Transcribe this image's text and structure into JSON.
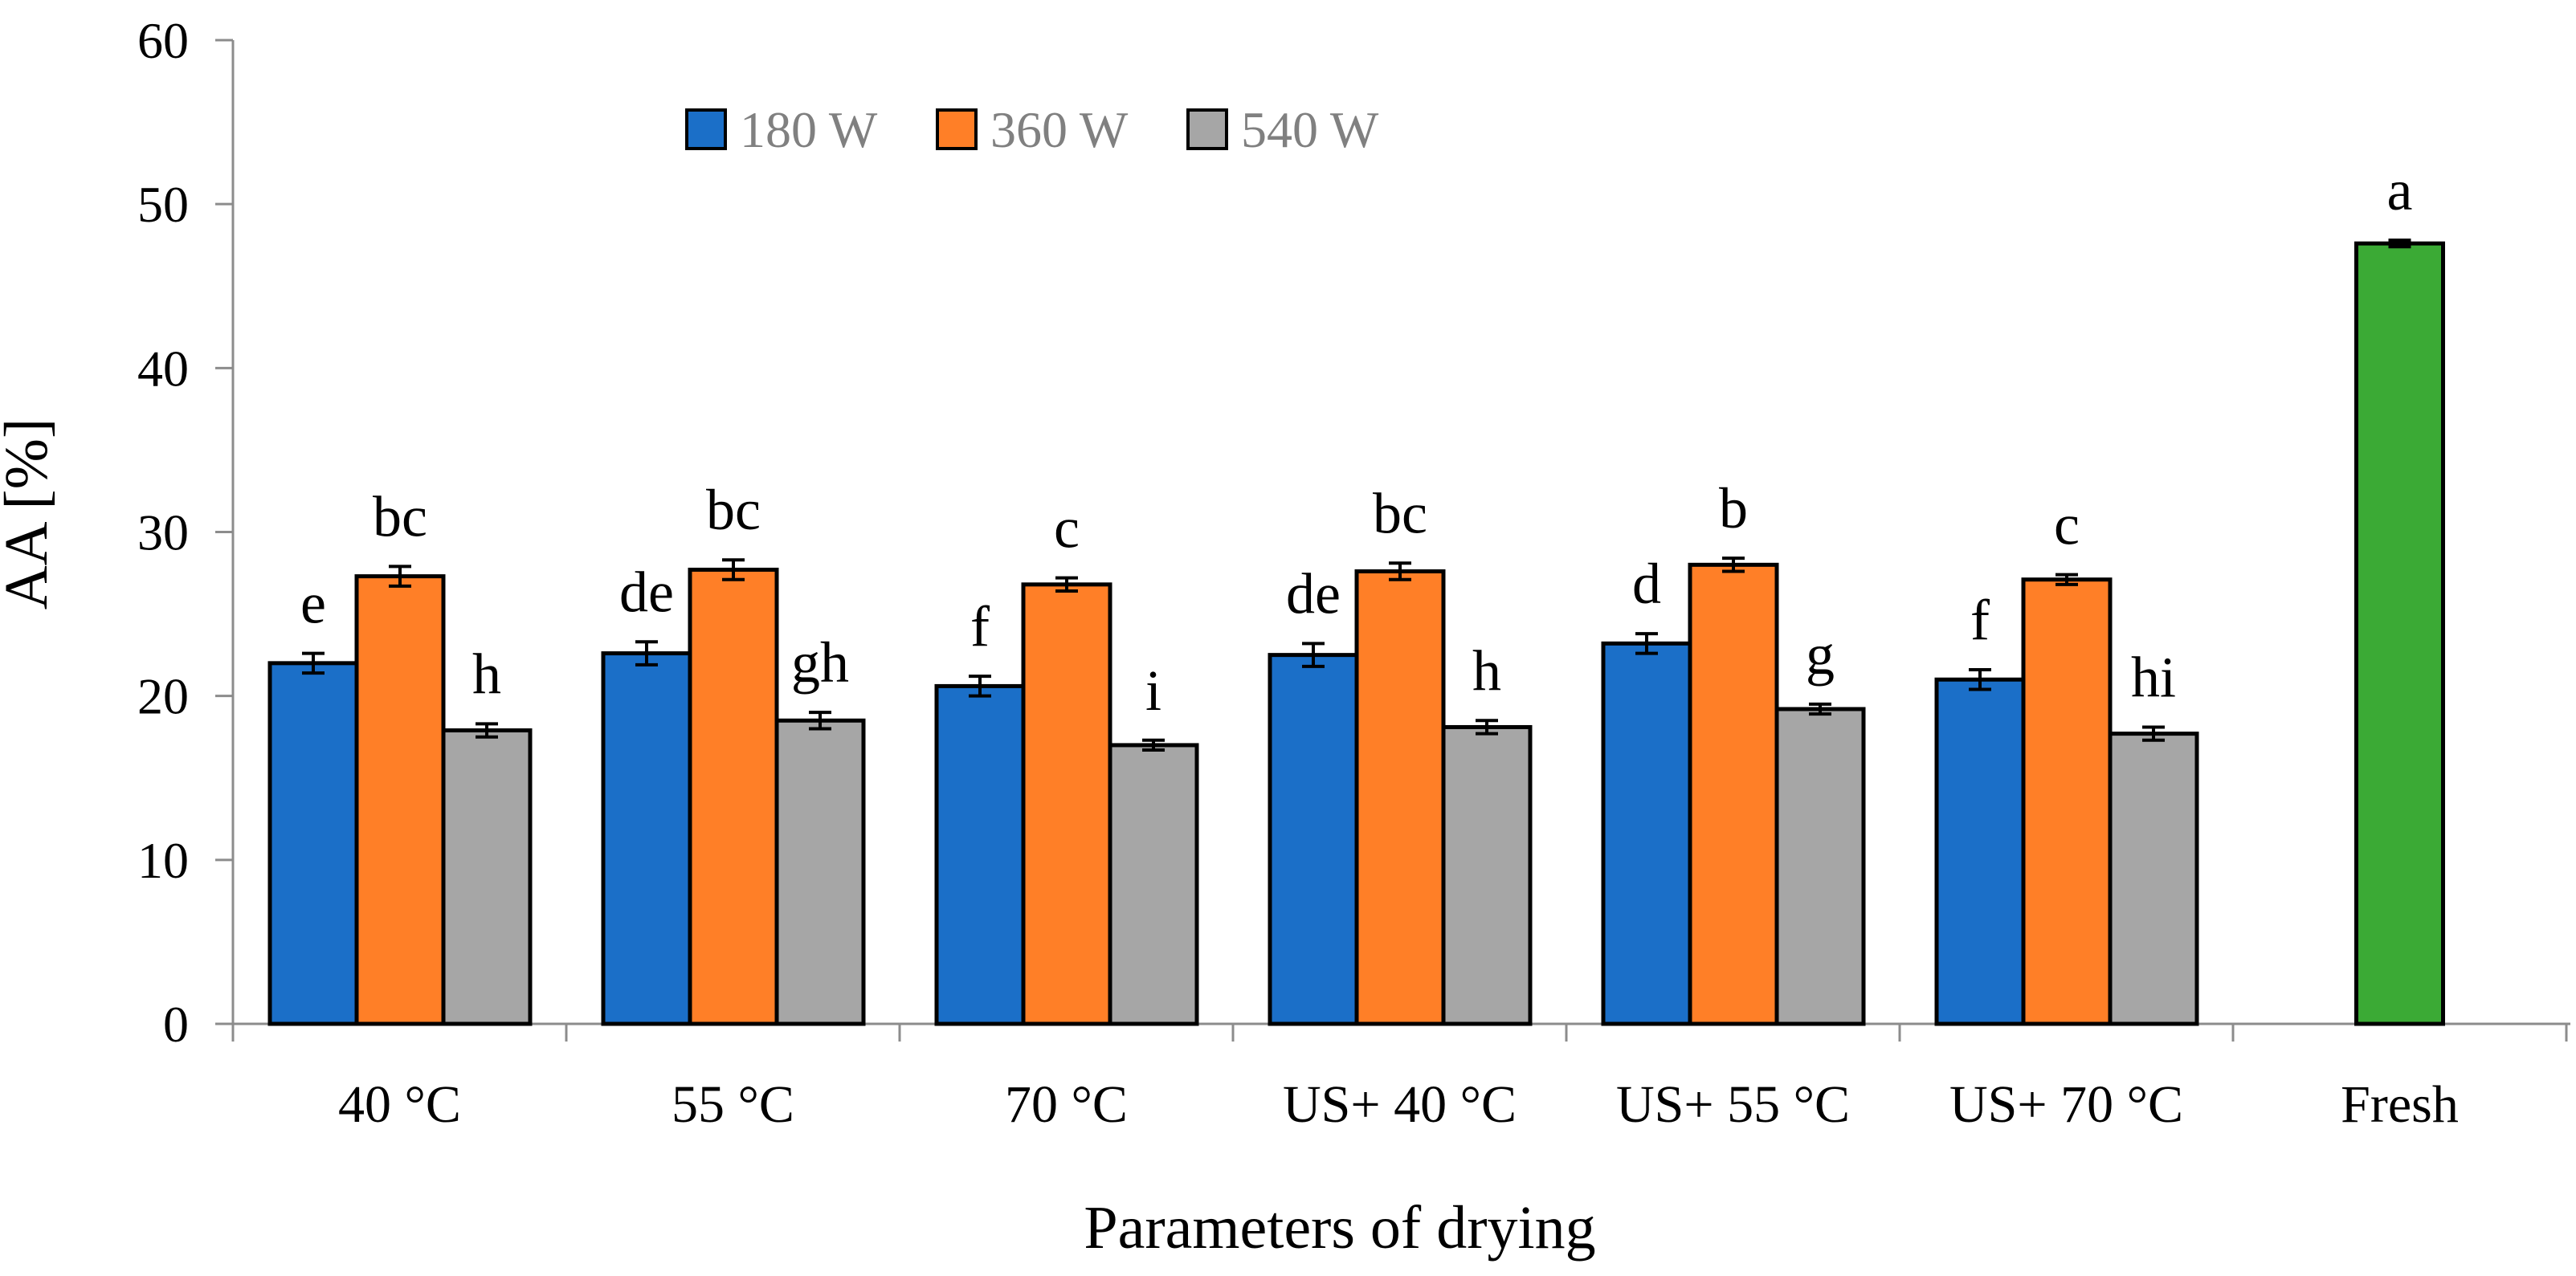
{
  "chart_data": {
    "type": "bar",
    "xlabel": "Parameters of drying",
    "ylabel": "AA [%]",
    "ylim": [
      0,
      60
    ],
    "yticks": [
      0,
      10,
      20,
      30,
      40,
      50,
      60
    ],
    "grid": false,
    "legend_position": "top-left",
    "categories": [
      "40 °C",
      "55 °C",
      "70 °C",
      "US+ 40 °C",
      "US+ 55 °C",
      "US+ 70 °C"
    ],
    "series": [
      {
        "name": "180 W",
        "color": "#1B6FC8",
        "values": [
          22.0,
          22.6,
          20.6,
          22.5,
          23.2,
          21.0
        ],
        "errors": [
          0.6,
          0.7,
          0.6,
          0.7,
          0.6,
          0.6
        ],
        "labels": [
          "e",
          "de",
          "f",
          "de",
          "d",
          "f"
        ]
      },
      {
        "name": "360 W",
        "color": "#FF7F27",
        "values": [
          27.3,
          27.7,
          26.8,
          27.6,
          28.0,
          27.1
        ],
        "errors": [
          0.6,
          0.6,
          0.4,
          0.5,
          0.4,
          0.3
        ],
        "labels": [
          "bc",
          "bc",
          "c",
          "bc",
          "b",
          "c"
        ]
      },
      {
        "name": "540 W",
        "color": "#A6A6A6",
        "values": [
          17.9,
          18.5,
          17.0,
          18.1,
          19.2,
          17.7
        ],
        "errors": [
          0.4,
          0.5,
          0.3,
          0.4,
          0.3,
          0.4
        ],
        "labels": [
          "h",
          "gh",
          "i",
          "h",
          "g",
          "hi"
        ]
      }
    ],
    "extra_bar": {
      "category": "Fresh",
      "color": "#3BAA35",
      "value": 47.6,
      "error": 0.2,
      "label": "a"
    }
  }
}
